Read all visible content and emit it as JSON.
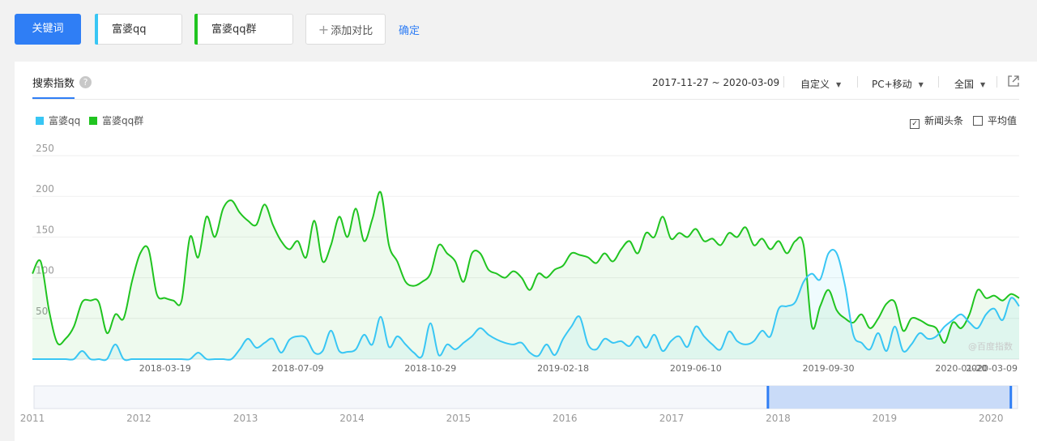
{
  "toolbar": {
    "keyword_button": "关键词",
    "keywords": [
      {
        "label": "富婆qq",
        "color": "#38c6f4"
      },
      {
        "label": "富婆qq群",
        "color": "#20c420"
      }
    ],
    "add_compare": "添加对比",
    "add_icon": "plus-icon",
    "confirm": "确定"
  },
  "panel": {
    "tab": "搜索指数",
    "help_icon": "question-icon",
    "date_range": "2017-11-27 ~ 2020-03-09",
    "range_mode": "自定义",
    "device": "PC+移动",
    "region": "全国",
    "export_icon": "external-link-icon",
    "checkboxes": [
      {
        "label": "新闻头条",
        "checked": true
      },
      {
        "label": "平均值",
        "checked": false
      }
    ],
    "watermark": "@百度指数"
  },
  "chart_data": {
    "type": "area",
    "y_ticks": [
      250,
      200,
      150,
      100,
      50
    ],
    "ylim": [
      0,
      250
    ],
    "x_labels": [
      "2018-03-19",
      "2018-07-09",
      "2018-10-29",
      "2019-02-18",
      "2019-06-10",
      "2019-09-30",
      "2020-01-20",
      "2020-03-09"
    ],
    "grid": true,
    "legend_position": "top-left",
    "colors": {
      "qq": "#38c6f4",
      "qq_group": "#20c420"
    },
    "x": [
      "2017-11-27",
      "2017-12-04",
      "2017-12-11",
      "2017-12-18",
      "2017-12-25",
      "2018-01-01",
      "2018-01-08",
      "2018-01-15",
      "2018-01-22",
      "2018-01-29",
      "2018-02-05",
      "2018-02-12",
      "2018-02-19",
      "2018-02-26",
      "2018-03-05",
      "2018-03-12",
      "2018-03-19",
      "2018-03-26",
      "2018-04-02",
      "2018-04-09",
      "2018-04-16",
      "2018-04-23",
      "2018-04-30",
      "2018-05-07",
      "2018-05-14",
      "2018-05-21",
      "2018-05-28",
      "2018-06-04",
      "2018-06-11",
      "2018-06-18",
      "2018-06-25",
      "2018-07-02",
      "2018-07-09",
      "2018-07-16",
      "2018-07-23",
      "2018-07-30",
      "2018-08-06",
      "2018-08-13",
      "2018-08-20",
      "2018-08-27",
      "2018-09-03",
      "2018-09-10",
      "2018-09-17",
      "2018-09-24",
      "2018-10-01",
      "2018-10-08",
      "2018-10-15",
      "2018-10-22",
      "2018-10-29",
      "2018-11-05",
      "2018-11-12",
      "2018-11-19",
      "2018-11-26",
      "2018-12-03",
      "2018-12-10",
      "2018-12-17",
      "2018-12-24",
      "2018-12-31",
      "2019-01-07",
      "2019-01-14",
      "2019-01-21",
      "2019-01-28",
      "2019-02-04",
      "2019-02-11",
      "2019-02-18",
      "2019-02-25",
      "2019-03-04",
      "2019-03-11",
      "2019-03-18",
      "2019-03-25",
      "2019-04-01",
      "2019-04-08",
      "2019-04-15",
      "2019-04-22",
      "2019-04-29",
      "2019-05-06",
      "2019-05-13",
      "2019-05-20",
      "2019-05-27",
      "2019-06-03",
      "2019-06-10",
      "2019-06-17",
      "2019-06-24",
      "2019-07-01",
      "2019-07-08",
      "2019-07-15",
      "2019-07-22",
      "2019-07-29",
      "2019-08-05",
      "2019-08-12",
      "2019-08-19",
      "2019-08-26",
      "2019-09-02",
      "2019-09-09",
      "2019-09-16",
      "2019-09-23",
      "2019-09-30",
      "2019-10-07",
      "2019-10-14",
      "2019-10-21",
      "2019-10-28",
      "2019-11-04",
      "2019-11-11",
      "2019-11-18",
      "2019-11-25",
      "2019-12-02",
      "2019-12-09",
      "2019-12-16",
      "2019-12-23",
      "2019-12-30",
      "2020-01-06",
      "2020-01-13",
      "2020-01-20",
      "2020-01-27",
      "2020-02-03",
      "2020-02-10",
      "2020-02-17",
      "2020-02-24",
      "2020-03-02",
      "2020-03-09"
    ],
    "series": [
      {
        "name": "富婆qq",
        "values": [
          0,
          0,
          0,
          0,
          0,
          0,
          10,
          0,
          0,
          0,
          18,
          0,
          0,
          0,
          0,
          0,
          0,
          0,
          0,
          0,
          8,
          0,
          0,
          0,
          0,
          12,
          25,
          14,
          20,
          25,
          8,
          24,
          28,
          26,
          8,
          10,
          35,
          10,
          9,
          12,
          30,
          18,
          52,
          15,
          28,
          18,
          8,
          4,
          44,
          5,
          18,
          12,
          20,
          28,
          38,
          30,
          24,
          20,
          18,
          20,
          8,
          4,
          18,
          5,
          25,
          40,
          52,
          18,
          12,
          25,
          20,
          22,
          16,
          28,
          14,
          30,
          10,
          22,
          28,
          15,
          40,
          28,
          18,
          12,
          34,
          22,
          18,
          22,
          35,
          28,
          62,
          65,
          70,
          95,
          105,
          98,
          130,
          130,
          90,
          30,
          20,
          12,
          32,
          10,
          40,
          10,
          18,
          32,
          25,
          28,
          40,
          48,
          55,
          45,
          38,
          55,
          62,
          48,
          75,
          65
        ]
      },
      {
        "name": "富婆qq群",
        "values": [
          105,
          120,
          60,
          20,
          25,
          40,
          70,
          72,
          70,
          32,
          55,
          50,
          95,
          130,
          135,
          80,
          75,
          72,
          72,
          150,
          125,
          175,
          150,
          185,
          195,
          180,
          170,
          165,
          190,
          165,
          145,
          135,
          145,
          125,
          170,
          120,
          140,
          175,
          150,
          185,
          145,
          172,
          205,
          140,
          120,
          95,
          90,
          95,
          105,
          140,
          130,
          120,
          95,
          130,
          130,
          110,
          105,
          100,
          108,
          100,
          85,
          105,
          100,
          110,
          115,
          130,
          128,
          125,
          118,
          130,
          120,
          135,
          145,
          130,
          155,
          150,
          175,
          148,
          155,
          150,
          160,
          145,
          148,
          140,
          155,
          150,
          162,
          140,
          148,
          135,
          145,
          130,
          145,
          140,
          40,
          65,
          85,
          60,
          50,
          45,
          55,
          38,
          50,
          68,
          70,
          35,
          50,
          48,
          42,
          38,
          20,
          45,
          38,
          55,
          85,
          75,
          78,
          72,
          80,
          75
        ]
      }
    ],
    "navigator": {
      "x_labels": [
        "2011",
        "2012",
        "2013",
        "2014",
        "2015",
        "2016",
        "2017",
        "2018",
        "2019",
        "2020"
      ]
    }
  }
}
